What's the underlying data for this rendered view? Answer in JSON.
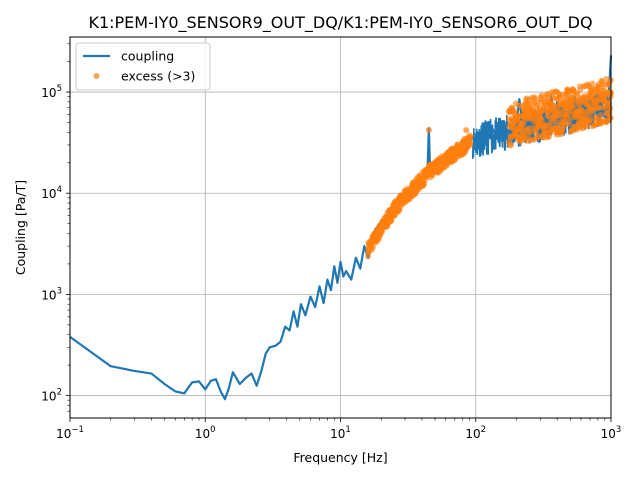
{
  "chart_data": {
    "type": "line",
    "title": "K1:PEM-IY0_SENSOR9_OUT_DQ/K1:PEM-IY0_SENSOR6_OUT_DQ",
    "xlabel": "Frequency [Hz]",
    "ylabel": "Coupling [Pa/T]",
    "xscale": "log",
    "yscale": "log",
    "xlim": [
      0.1,
      1000
    ],
    "ylim": [
      60,
      350000
    ],
    "grid": true,
    "legend_position": "top-left",
    "x_ticks": [
      {
        "value": 0.1,
        "base": "10",
        "exp": "−1"
      },
      {
        "value": 1,
        "base": "10",
        "exp": "0"
      },
      {
        "value": 10,
        "base": "10",
        "exp": "1"
      },
      {
        "value": 100,
        "base": "10",
        "exp": "2"
      },
      {
        "value": 1000,
        "base": "10",
        "exp": "3"
      }
    ],
    "y_ticks": [
      {
        "value": 100,
        "base": "10",
        "exp": "2"
      },
      {
        "value": 1000,
        "base": "10",
        "exp": "3"
      },
      {
        "value": 10000,
        "base": "10",
        "exp": "4"
      },
      {
        "value": 100000,
        "base": "10",
        "exp": "5"
      }
    ],
    "series": [
      {
        "name": "coupling",
        "kind": "line",
        "color": "#1f77b4",
        "points": [
          [
            0.1,
            380
          ],
          [
            0.2,
            195
          ],
          [
            0.3,
            175
          ],
          [
            0.4,
            165
          ],
          [
            0.5,
            130
          ],
          [
            0.6,
            110
          ],
          [
            0.7,
            105
          ],
          [
            0.8,
            135
          ],
          [
            0.9,
            138
          ],
          [
            1.0,
            115
          ],
          [
            1.1,
            140
          ],
          [
            1.2,
            145
          ],
          [
            1.3,
            110
          ],
          [
            1.4,
            92
          ],
          [
            1.5,
            120
          ],
          [
            1.6,
            170
          ],
          [
            1.8,
            130
          ],
          [
            2.0,
            150
          ],
          [
            2.2,
            165
          ],
          [
            2.4,
            125
          ],
          [
            2.6,
            175
          ],
          [
            2.8,
            260
          ],
          [
            3.0,
            300
          ],
          [
            3.3,
            310
          ],
          [
            3.6,
            340
          ],
          [
            3.9,
            480
          ],
          [
            4.2,
            440
          ],
          [
            4.5,
            680
          ],
          [
            4.8,
            480
          ],
          [
            5.1,
            800
          ],
          [
            5.5,
            620
          ],
          [
            6.0,
            950
          ],
          [
            6.5,
            750
          ],
          [
            7.0,
            1200
          ],
          [
            7.5,
            820
          ],
          [
            8.0,
            1400
          ],
          [
            8.5,
            1100
          ],
          [
            9.0,
            1900
          ],
          [
            9.5,
            1300
          ],
          [
            10,
            2100
          ],
          [
            10.5,
            1500
          ],
          [
            11,
            1700
          ],
          [
            12,
            1400
          ],
          [
            13,
            2300
          ],
          [
            14,
            1800
          ],
          [
            15,
            3000
          ],
          [
            16,
            2300
          ],
          [
            17,
            3400
          ],
          [
            18,
            4300
          ],
          [
            20,
            5200
          ],
          [
            22,
            6000
          ],
          [
            25,
            8000
          ],
          [
            28,
            9500
          ],
          [
            31,
            10500
          ],
          [
            35,
            12500
          ],
          [
            40,
            14000
          ],
          [
            44,
            16500
          ],
          [
            45,
            44000
          ],
          [
            46,
            15500
          ],
          [
            50,
            17500
          ],
          [
            55,
            20000
          ],
          [
            60,
            21500
          ],
          [
            65,
            23500
          ],
          [
            70,
            25500
          ],
          [
            75,
            28000
          ],
          [
            80,
            30000
          ],
          [
            85,
            26000
          ],
          [
            90,
            32000
          ],
          [
            95,
            36000
          ],
          [
            100,
            30000
          ],
          [
            105,
            34000
          ],
          [
            110,
            38000
          ],
          [
            115,
            30000
          ],
          [
            120,
            42000
          ],
          [
            125,
            35000
          ],
          [
            130,
            46000
          ],
          [
            140,
            38000
          ],
          [
            150,
            43000
          ],
          [
            160,
            36000
          ],
          [
            170,
            50000
          ],
          [
            180,
            45000
          ],
          [
            190,
            36000
          ],
          [
            200,
            48000
          ],
          [
            210,
            85000
          ],
          [
            220,
            52000
          ],
          [
            240,
            58000
          ],
          [
            260,
            50000
          ],
          [
            280,
            62000
          ],
          [
            300,
            55000
          ],
          [
            320,
            68000
          ],
          [
            340,
            52000
          ],
          [
            360,
            92000
          ],
          [
            380,
            58000
          ],
          [
            400,
            80000
          ],
          [
            430,
            55000
          ],
          [
            460,
            72000
          ],
          [
            500,
            65000
          ],
          [
            540,
            90000
          ],
          [
            580,
            60000
          ],
          [
            620,
            78000
          ],
          [
            660,
            70000
          ],
          [
            700,
            85000
          ],
          [
            750,
            65000
          ],
          [
            800,
            90000
          ],
          [
            850,
            75000
          ],
          [
            900,
            82000
          ],
          [
            950,
            70000
          ],
          [
            1000,
            230000
          ]
        ]
      },
      {
        "name": "excess (>3)",
        "kind": "scatter",
        "color": "#ff7f0e",
        "x_min": 16,
        "x_max": 1000,
        "points": [
          [
            16,
            2800
          ],
          [
            17,
            3200
          ],
          [
            18,
            3800
          ],
          [
            19,
            4200
          ],
          [
            20,
            4500
          ],
          [
            22,
            5500
          ],
          [
            24,
            6500
          ],
          [
            26,
            7200
          ],
          [
            28,
            8300
          ],
          [
            30,
            9000
          ],
          [
            32,
            9800
          ],
          [
            35,
            11000
          ],
          [
            38,
            12500
          ],
          [
            41,
            14000
          ],
          [
            44,
            15500
          ],
          [
            45,
            42000
          ],
          [
            47,
            16500
          ],
          [
            50,
            18000
          ],
          [
            55,
            20000
          ],
          [
            60,
            22000
          ],
          [
            65,
            23500
          ],
          [
            70,
            25500
          ],
          [
            75,
            28000
          ],
          [
            80,
            29500
          ],
          [
            85,
            42000
          ],
          [
            90,
            32000
          ],
          [
            180,
            48000
          ],
          [
            200,
            55000
          ],
          [
            230,
            60000
          ],
          [
            260,
            58000
          ],
          [
            300,
            70000
          ],
          [
            350,
            65000
          ],
          [
            400,
            100000
          ],
          [
            450,
            75000
          ],
          [
            500,
            80000
          ],
          [
            600,
            85000
          ],
          [
            700,
            90000
          ],
          [
            800,
            82000
          ],
          [
            900,
            95000
          ],
          [
            1000,
            98000
          ]
        ]
      }
    ]
  }
}
